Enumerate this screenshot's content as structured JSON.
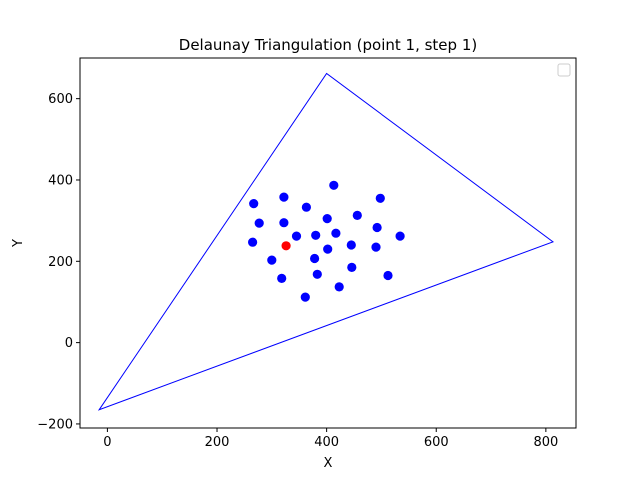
{
  "chart_data": {
    "type": "scatter",
    "title": "Delaunay Triangulation (point 1, step 1)",
    "xlabel": "X",
    "ylabel": "Y",
    "xlim": [
      -50,
      855
    ],
    "ylim": [
      -210,
      700
    ],
    "xticks": [
      0,
      200,
      400,
      600,
      800
    ],
    "yticks": [
      -200,
      0,
      200,
      400,
      600
    ],
    "xtick_labels": [
      "0",
      "200",
      "400",
      "600",
      "800"
    ],
    "ytick_labels": [
      "−200",
      "0",
      "200",
      "400",
      "600"
    ],
    "legend": {
      "placement": "top-right",
      "entries": []
    },
    "grid": false,
    "colors": {
      "points": "#0000ff",
      "highlight": "#ff0000",
      "triangle": "#0000ff"
    },
    "triangle": [
      [
        -15,
        -165
      ],
      [
        400,
        662
      ],
      [
        813,
        248
      ]
    ],
    "points": [
      [
        267,
        342
      ],
      [
        322,
        358
      ],
      [
        413,
        387
      ],
      [
        498,
        355
      ],
      [
        277,
        294
      ],
      [
        322,
        295
      ],
      [
        363,
        333
      ],
      [
        401,
        305
      ],
      [
        456,
        313
      ],
      [
        492,
        283
      ],
      [
        265,
        247
      ],
      [
        345,
        262
      ],
      [
        380,
        264
      ],
      [
        417,
        269
      ],
      [
        534,
        262
      ],
      [
        402,
        230
      ],
      [
        445,
        240
      ],
      [
        490,
        235
      ],
      [
        300,
        203
      ],
      [
        378,
        207
      ],
      [
        318,
        158
      ],
      [
        383,
        168
      ],
      [
        446,
        185
      ],
      [
        512,
        165
      ],
      [
        361,
        112
      ],
      [
        423,
        137
      ]
    ],
    "highlight_point": [
      326,
      238
    ]
  }
}
